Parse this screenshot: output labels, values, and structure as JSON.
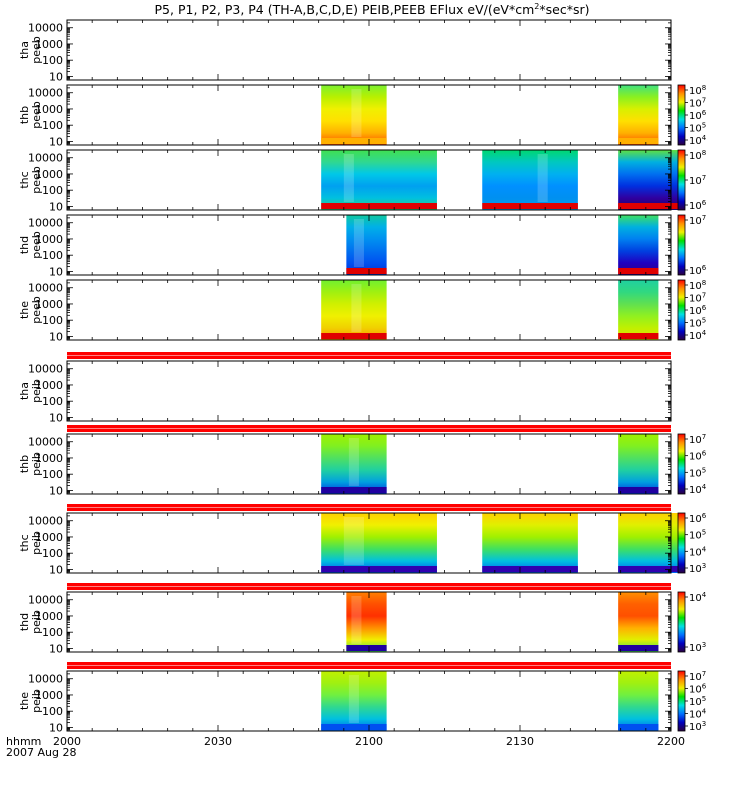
{
  "title": {
    "main": "P5, P1, P2, P3, P4 (TH-A,B,C,D,E) PEIB,PEEB EFlux eV/(eV*cm",
    "sup": "2",
    "tail": "*sec*sr)"
  },
  "chart_data": {
    "type": "heatmap",
    "x": {
      "tick_labels": [
        "2000",
        "2030",
        "2100",
        "2130",
        "2200"
      ],
      "tick_minutes": [
        0,
        30,
        60,
        90,
        120
      ],
      "range_minutes": [
        0,
        120
      ],
      "minor_every_minutes": 5,
      "label_line1": "hhmm",
      "label_line2": "2007 Aug 28"
    },
    "y": {
      "scale": "log",
      "range": [
        6,
        30000
      ],
      "tick_values": [
        10,
        100,
        1000,
        10000
      ],
      "tick_labels": [
        "10",
        "100",
        "1000",
        "10000"
      ]
    },
    "colors": {
      "stripe": "#ff0000",
      "line": "#000000"
    },
    "panels": [
      {
        "ylabel_line1": "tha",
        "ylabel_line2": "peeb",
        "stripe_above": false,
        "blocks": [],
        "colorbar": null
      },
      {
        "ylabel_line1": "thb",
        "ylabel_line2": "peeb",
        "stripe_above": false,
        "blocks": [
          {
            "t0": 50.5,
            "t1": 63.5,
            "stops": [
              "#ff4a00",
              "#ffb000",
              "#ffe000",
              "#f0f000",
              "#b8f000",
              "#7aef30"
            ],
            "floor": "#ffb000",
            "vstreak": [
              56.5,
              58.5
            ]
          },
          {
            "t0": 109.5,
            "t1": 117.5,
            "stops": [
              "#ff4a00",
              "#ffb000",
              "#ffe000",
              "#d8f000",
              "#8af020",
              "#40e080"
            ],
            "floor": "#ffb000"
          }
        ],
        "colorbar": {
          "ticks": [
            "10",
            "10",
            "10",
            "10",
            "10"
          ],
          "exponents": [
            "4",
            "5",
            "6",
            "7",
            "8"
          ],
          "stops": [
            "#2a0040",
            "#0000c0",
            "#0070ff",
            "#00e0e0",
            "#00e000",
            "#f0f000",
            "#ff9000",
            "#ff0000"
          ]
        }
      },
      {
        "ylabel_line1": "thc",
        "ylabel_line2": "peeb",
        "stripe_above": false,
        "blocks": [
          {
            "t0": 50.5,
            "t1": 73.5,
            "stops": [
              "#30d070",
              "#00c0e0",
              "#00a0f0",
              "#00c8e8",
              "#30d890",
              "#40e050"
            ],
            "floor": "#e00000",
            "vstreak": [
              55,
              57
            ]
          },
          {
            "t0": 82.5,
            "t1": 101.5,
            "stops": [
              "#00a0e8",
              "#0090f0",
              "#0090ff",
              "#00b0f0",
              "#00c8c0",
              "#00d870"
            ],
            "floor": "#e00000",
            "vstreak": [
              93.5,
              95.5
            ]
          },
          {
            "t0": 109.5,
            "t1": 122.5,
            "stops": [
              "#200060",
              "#3000a0",
              "#0030e0",
              "#0070f0",
              "#00b0e0",
              "#60e040"
            ],
            "floor": "#e00000"
          }
        ],
        "colorbar": {
          "ticks": [
            "10",
            "10",
            "10"
          ],
          "exponents": [
            "6",
            "7",
            "8"
          ],
          "stops": [
            "#2a0040",
            "#0000c0",
            "#0070ff",
            "#00e0e0",
            "#00e000",
            "#f0f000",
            "#ff9000",
            "#ff0000"
          ]
        }
      },
      {
        "ylabel_line1": "thd",
        "ylabel_line2": "peeb",
        "stripe_above": false,
        "blocks": [
          {
            "t0": 55.5,
            "t1": 63.5,
            "stops": [
              "#0030d0",
              "#0050f0",
              "#0070f0",
              "#0090f0",
              "#00b0e8",
              "#10c8a0"
            ],
            "floor": "#e00000",
            "vstreak": [
              57,
              59
            ]
          },
          {
            "t0": 109.5,
            "t1": 117.5,
            "stops": [
              "#300080",
              "#2000c0",
              "#0040e0",
              "#0080f0",
              "#00b0e0",
              "#40e060"
            ],
            "floor": "#e00000"
          }
        ],
        "colorbar": {
          "ticks": [
            "10",
            "10"
          ],
          "exponents": [
            "6",
            "7"
          ],
          "stops": [
            "#2a0040",
            "#0000c0",
            "#0070ff",
            "#00e0e0",
            "#00e000",
            "#f0f000",
            "#ff9000",
            "#ff0000"
          ]
        }
      },
      {
        "ylabel_line1": "the",
        "ylabel_line2": "peeb",
        "stripe_above": false,
        "blocks": [
          {
            "t0": 50.5,
            "t1": 63.5,
            "stops": [
              "#ff9000",
              "#f0d000",
              "#f0f000",
              "#d0f000",
              "#a0f010",
              "#70f030"
            ],
            "floor": "#e00000",
            "vstreak": [
              56.5,
              58.5
            ]
          },
          {
            "t0": 109.5,
            "t1": 117.5,
            "stops": [
              "#e8e000",
              "#c0f000",
              "#90f020",
              "#60e050",
              "#30d880",
              "#20d0a0"
            ],
            "floor": "#e00000"
          }
        ],
        "colorbar": {
          "ticks": [
            "10",
            "10",
            "10",
            "10",
            "10"
          ],
          "exponents": [
            "4",
            "5",
            "6",
            "7",
            "8"
          ],
          "stops": [
            "#2a0040",
            "#0000c0",
            "#0070ff",
            "#00e0e0",
            "#00e000",
            "#f0f000",
            "#ff9000",
            "#ff0000"
          ]
        }
      },
      {
        "ylabel_line1": "tha",
        "ylabel_line2": "peib",
        "stripe_above": true,
        "blocks": [],
        "colorbar": null
      },
      {
        "ylabel_line1": "thb",
        "ylabel_line2": "peib",
        "stripe_above": true,
        "blocks": [
          {
            "t0": 50.5,
            "t1": 63.5,
            "stops": [
              "#0030e0",
              "#00a0e0",
              "#20d0a0",
              "#50e060",
              "#80f020",
              "#a0f000"
            ],
            "floor": "#2000a0",
            "vstreak": [
              56,
              58
            ]
          },
          {
            "t0": 109.5,
            "t1": 117.5,
            "stops": [
              "#0030e0",
              "#00a0e0",
              "#20d0a0",
              "#50e060",
              "#80f020",
              "#a0f000"
            ],
            "floor": "#2000a0"
          }
        ],
        "colorbar": {
          "ticks": [
            "10",
            "10",
            "10",
            "10"
          ],
          "exponents": [
            "4",
            "5",
            "6",
            "7"
          ],
          "stops": [
            "#2a0040",
            "#0000c0",
            "#0070ff",
            "#00e0e0",
            "#00e000",
            "#f0f000",
            "#ff9000",
            "#ff0000"
          ]
        }
      },
      {
        "ylabel_line1": "thc",
        "ylabel_line2": "peib",
        "stripe_above": true,
        "blocks": [
          {
            "t0": 50.5,
            "t1": 73.5,
            "stops": [
              "#0050f0",
              "#00c0e0",
              "#40e060",
              "#a0f000",
              "#f0f000",
              "#ffd000"
            ],
            "floor": "#3000b0",
            "vstreak": [
              55,
              59
            ]
          },
          {
            "t0": 82.5,
            "t1": 101.5,
            "stops": [
              "#0060f0",
              "#00c0e0",
              "#40e060",
              "#a0f000",
              "#e0f000",
              "#ffd000"
            ],
            "floor": "#3000b0"
          },
          {
            "t0": 109.5,
            "t1": 122.5,
            "stops": [
              "#0060f0",
              "#00c0e0",
              "#40e060",
              "#a0f000",
              "#e0f000",
              "#ffd000"
            ],
            "floor": "#3000b0"
          }
        ],
        "colorbar": {
          "ticks": [
            "10",
            "10",
            "10",
            "10"
          ],
          "exponents": [
            "3",
            "4",
            "5",
            "6"
          ],
          "stops": [
            "#2a0040",
            "#0000c0",
            "#0070ff",
            "#00e0e0",
            "#00e000",
            "#f0f000",
            "#ff9000",
            "#ff0000"
          ]
        }
      },
      {
        "ylabel_line1": "thd",
        "ylabel_line2": "peib",
        "stripe_above": true,
        "blocks": [
          {
            "t0": 55.5,
            "t1": 63.5,
            "stops": [
              "#40e060",
              "#f0f000",
              "#ff9000",
              "#ff3000",
              "#ff5000",
              "#ff8000"
            ],
            "floor": "#2000a0",
            "vstreak": [
              56.5,
              58.5
            ]
          },
          {
            "t0": 109.5,
            "t1": 117.5,
            "stops": [
              "#40e060",
              "#e0f000",
              "#ffb000",
              "#ff5000",
              "#ff6000",
              "#ff9000"
            ],
            "floor": "#2000a0"
          }
        ],
        "colorbar": {
          "ticks": [
            "10",
            "10"
          ],
          "exponents": [
            "3",
            "4"
          ],
          "stops": [
            "#2a0040",
            "#0000c0",
            "#0070ff",
            "#00e0e0",
            "#00e000",
            "#f0f000",
            "#ff9000",
            "#ff0000"
          ]
        }
      },
      {
        "ylabel_line1": "the",
        "ylabel_line2": "peib",
        "stripe_above": true,
        "blocks": [
          {
            "t0": 50.5,
            "t1": 63.5,
            "stops": [
              "#0060f0",
              "#00c0e0",
              "#30d890",
              "#70f040",
              "#a0f010",
              "#c0f000"
            ],
            "floor": "#0050f0",
            "vstreak": [
              56,
              58
            ]
          },
          {
            "t0": 109.5,
            "t1": 117.5,
            "stops": [
              "#0060f0",
              "#00c0e0",
              "#30d890",
              "#70f040",
              "#a0f010",
              "#c0f000"
            ],
            "floor": "#0050f0"
          }
        ],
        "colorbar": {
          "ticks": [
            "10",
            "10",
            "10",
            "10",
            "10"
          ],
          "exponents": [
            "3",
            "4",
            "5",
            "6",
            "7"
          ],
          "stops": [
            "#2a0040",
            "#0000c0",
            "#0070ff",
            "#00e0e0",
            "#00e000",
            "#f0f000",
            "#ff9000",
            "#ff0000"
          ]
        }
      }
    ]
  }
}
